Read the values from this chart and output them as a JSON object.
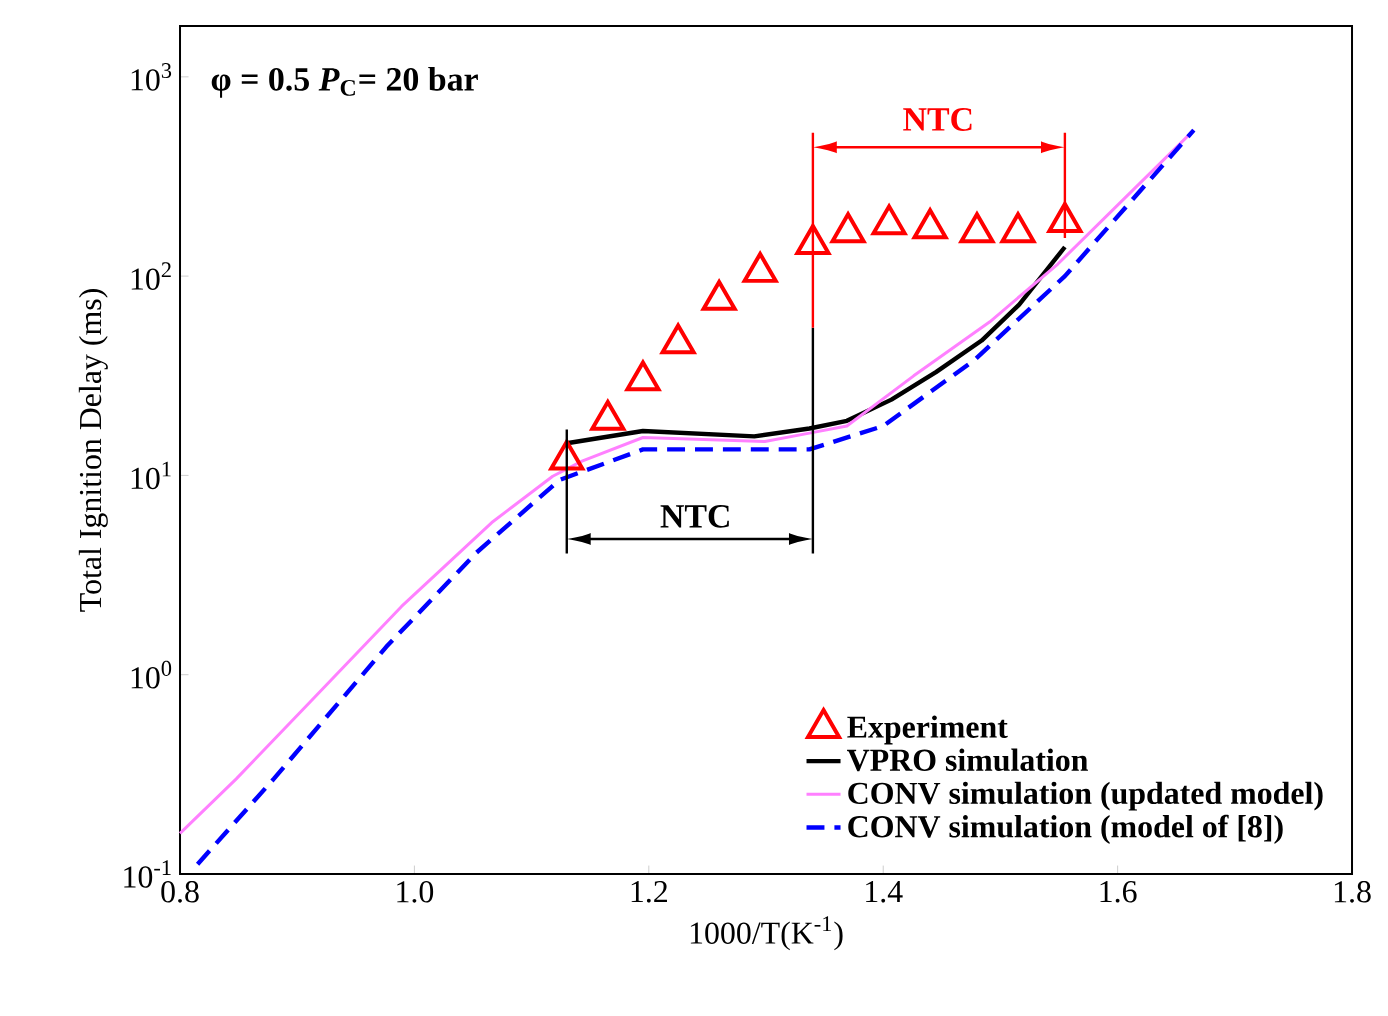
{
  "chart_data": {
    "type": "line",
    "xlabel": "1000/T(K$^{-1}$)",
    "ylabel": "Total Ignition Delay (ms)",
    "log": "y",
    "legend": "bottom right",
    "xlim": [
      0.8,
      1.8
    ],
    "ylim": [
      0.1,
      1800
    ],
    "xticks": [
      {
        "value": 0.8,
        "label": "0.8"
      },
      {
        "value": 1.0,
        "label": "1.0"
      },
      {
        "value": 1.2,
        "label": "1.2"
      },
      {
        "value": 1.4,
        "label": "1.4"
      },
      {
        "value": 1.6,
        "label": "1.6"
      },
      {
        "value": 1.8,
        "label": "1.8"
      }
    ],
    "yticks": [
      {
        "value": 0.1,
        "label": "10$^{-1}$"
      },
      {
        "value": 1,
        "label": "10$^{0}$"
      },
      {
        "value": 10,
        "label": "10$^{1}$"
      },
      {
        "value": 100,
        "label": "10$^{2}$"
      },
      {
        "value": 1000,
        "label": "10$^{3}$"
      }
    ],
    "series": [
      {
        "name": "Experiment",
        "type": "scatter",
        "marker": "triangle",
        "color": "#ff0000",
        "x": [
          1.13,
          1.165,
          1.195,
          1.225,
          1.26,
          1.295,
          1.34,
          1.37,
          1.405,
          1.44,
          1.48,
          1.515,
          1.555
        ],
        "values": [
          12,
          19,
          30,
          46,
          76,
          105,
          145,
          166,
          182,
          174,
          166,
          166,
          187
        ]
      },
      {
        "name": "VPRO simulation",
        "line_style": "solid",
        "color": "#000000",
        "x": [
          1.13,
          1.195,
          1.29,
          1.337,
          1.369,
          1.407,
          1.445,
          1.484,
          1.516,
          1.555
        ],
        "values": [
          14.5,
          16.7,
          15.7,
          17.2,
          18.8,
          24,
          33,
          47.5,
          72,
          140
        ]
      },
      {
        "name": "CONV simulation (updated model)",
        "line_style": "solid",
        "color": "#ff80ff",
        "x": [
          0.8,
          0.848,
          0.912,
          0.989,
          1.066,
          1.118,
          1.143,
          1.195,
          1.299,
          1.337,
          1.369,
          1.426,
          1.491,
          1.549,
          1.665
        ],
        "values": [
          0.16,
          0.3,
          0.74,
          2.2,
          5.8,
          9.9,
          11.8,
          15.5,
          14.8,
          16.3,
          17.7,
          31.6,
          59,
          115,
          540
        ]
      },
      {
        "name": "CONV simulation (model of [8])",
        "line_style": "dashed",
        "color": "#0000ff",
        "x": [
          0.815,
          0.88,
          0.976,
          1.053,
          1.124,
          1.195,
          1.299,
          1.337,
          1.4,
          1.478,
          1.555,
          1.665
        ],
        "values": [
          0.112,
          0.3,
          1.38,
          4.1,
          9.5,
          13.5,
          13.5,
          13.5,
          17.7,
          38,
          100,
          540
        ]
      }
    ],
    "annotations": [
      "φ = 0.5  *P*$_{C}$= 20 bar",
      "NTC",
      "NTC"
    ]
  }
}
